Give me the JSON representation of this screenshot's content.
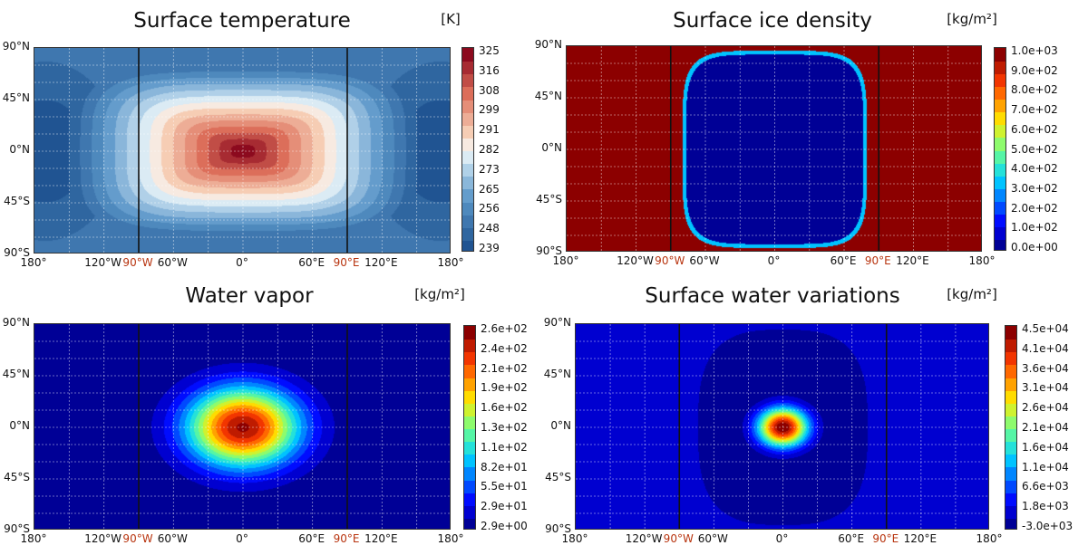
{
  "chart_data": [
    {
      "type": "heatmap",
      "title": "Surface temperature",
      "unit": "[K]",
      "colormap": "red-blue",
      "colorbar_ticks": [
        "325",
        "316",
        "308",
        "299",
        "291",
        "282",
        "273",
        "265",
        "256",
        "248",
        "239"
      ],
      "colorbar_range": [
        239,
        325
      ],
      "pattern": "hot square centered at 0°N 0°, peak ~325 K, cold night side ~239 K",
      "ylabels": [
        "90°N",
        "45°N",
        "0°N",
        "45°S",
        "90°S"
      ],
      "xlabels": [
        "180°",
        "120°W",
        "90°W",
        "60°W",
        "0°",
        "60°E",
        "90°E",
        "120°E",
        "180°"
      ],
      "highlighted_xlabels": [
        "90°W",
        "90°E"
      ]
    },
    {
      "type": "heatmap",
      "title": "Surface ice density",
      "unit": "[kg/m²]",
      "colormap": "jet",
      "colorbar_ticks": [
        "1.0e+03",
        "9.0e+02",
        "8.0e+02",
        "7.0e+02",
        "6.0e+02",
        "5.0e+02",
        "4.0e+02",
        "3.0e+02",
        "2.0e+02",
        "1.0e+02",
        "0.0e+00"
      ],
      "colorbar_range": [
        0,
        1000
      ],
      "pattern": "ice-free rounded region on day side, ~1000 kg/m² elsewhere",
      "ylabels": [
        "90°N",
        "45°N",
        "0°N",
        "45°S",
        "90°S"
      ],
      "xlabels": [
        "180°",
        "120°W",
        "90°W",
        "60°W",
        "0°",
        "60°E",
        "90°E",
        "120°E",
        "180°"
      ],
      "highlighted_xlabels": [
        "90°W",
        "90°E"
      ]
    },
    {
      "type": "heatmap",
      "title": "Water vapor",
      "unit": "[kg/m²]",
      "colormap": "jet",
      "colorbar_ticks": [
        "2.6e+02",
        "2.4e+02",
        "2.1e+02",
        "1.9e+02",
        "1.6e+02",
        "1.3e+02",
        "1.1e+02",
        "8.2e+01",
        "5.5e+01",
        "2.9e+01",
        "2.9e+00"
      ],
      "colorbar_range": [
        2.9,
        260
      ],
      "pattern": "vapor maximum near substellar point, decaying outward",
      "ylabels": [
        "90°N",
        "45°N",
        "0°N",
        "45°S",
        "90°S"
      ],
      "xlabels": [
        "180°",
        "120°W",
        "90°W",
        "60°W",
        "0°",
        "60°E",
        "90°E",
        "120°E",
        "180°"
      ],
      "highlighted_xlabels": [
        "90°W",
        "90°E"
      ]
    },
    {
      "type": "heatmap",
      "title": "Surface water variations",
      "unit": "[kg/m²]",
      "colormap": "jet",
      "colorbar_ticks": [
        "4.5e+04",
        "4.1e+04",
        "3.6e+04",
        "3.1e+04",
        "2.6e+04",
        "2.1e+04",
        "1.6e+04",
        "1.1e+04",
        "6.6e+03",
        "1.8e+03",
        "-3.0e+03"
      ],
      "colorbar_range": [
        -3000,
        45000
      ],
      "pattern": "small positive spot at substellar point, slight deficit over day side",
      "ylabels": [
        "90°N",
        "45°N",
        "0°N",
        "45°S",
        "90°S"
      ],
      "xlabels": [
        "180°",
        "120°W",
        "90°W",
        "60°W",
        "0°",
        "60°E",
        "90°E",
        "120°E",
        "180°"
      ],
      "highlighted_xlabels": [
        "90°W",
        "90°E"
      ]
    }
  ]
}
